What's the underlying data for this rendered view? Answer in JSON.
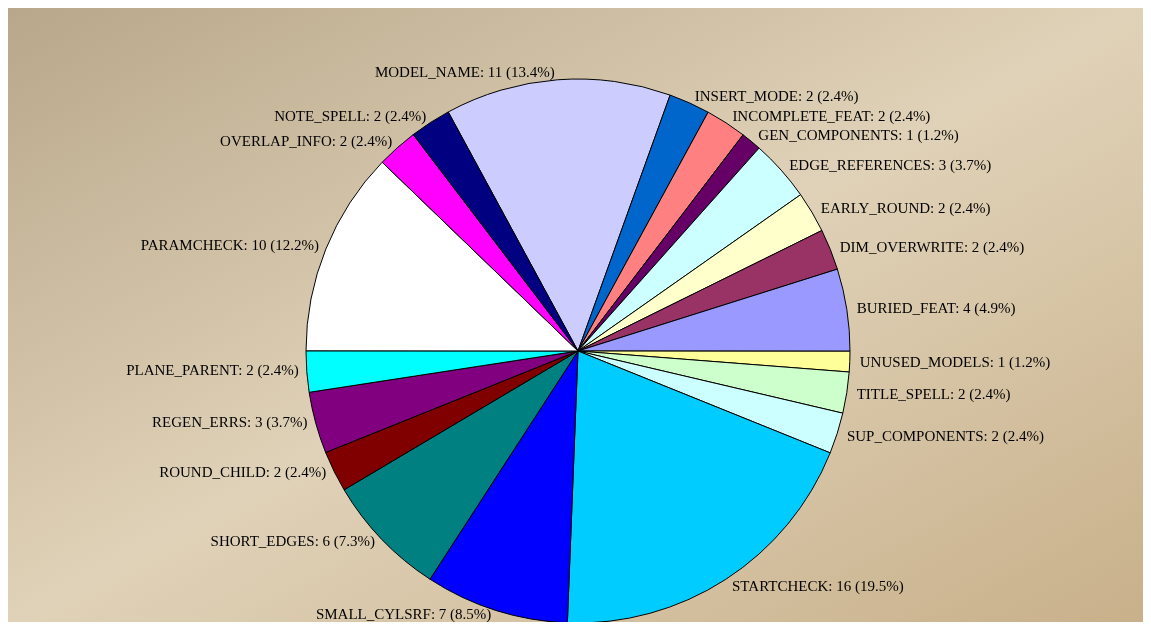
{
  "chart_data": {
    "type": "pie",
    "categories": [
      "MODEL_NAME",
      "INSERT_MODE",
      "INCOMPLETE_FEAT",
      "GEN_COMPONENTS",
      "EDGE_REFERENCES",
      "EARLY_ROUND",
      "DIM_OVERWRITE",
      "BURIED_FEAT",
      "UNUSED_MODELS",
      "TITLE_SPELL",
      "SUP_COMPONENTS",
      "STARTCHECK",
      "SMALL_CYLSRF",
      "SHORT_EDGES",
      "ROUND_CHILD",
      "REGEN_ERRS",
      "PLANE_PARENT",
      "PARAMCHECK",
      "OVERLAP_INFO",
      "NOTE_SPELL"
    ],
    "values": [
      11,
      2,
      2,
      1,
      3,
      2,
      2,
      4,
      1,
      2,
      2,
      16,
      7,
      6,
      2,
      3,
      2,
      10,
      2,
      2
    ],
    "value_labels": [
      "11 (13.4%)",
      "2 (2.4%)",
      "2 (2.4%)",
      "1 (1.2%)",
      "3 (3.7%)",
      "2 (2.4%)",
      "2 (2.4%)",
      "4 (4.9%)",
      "1 (1.2%)",
      "2 (2.4%)",
      "2 (2.4%)",
      "16 (19.5%)",
      "7 (8.5%)",
      "6 (7.3%)",
      "2 (2.4%)",
      "3 (3.7%)",
      "2 (2.4%)",
      "10 (12.2%)",
      "2 (2.4%)",
      "2 (2.4%)"
    ],
    "colors": [
      "#ccccff",
      "#0066cc",
      "#ff8080",
      "#660066",
      "#ccffff",
      "#ffffcc",
      "#993366",
      "#9999ff",
      "#ffff99",
      "#ccffcc",
      "#ccffff",
      "#00ccff",
      "#0000ff",
      "#008080",
      "#800000",
      "#800080",
      "#00ffff",
      "#ffffff",
      "#ff00ff",
      "#000080"
    ],
    "legend": false
  }
}
